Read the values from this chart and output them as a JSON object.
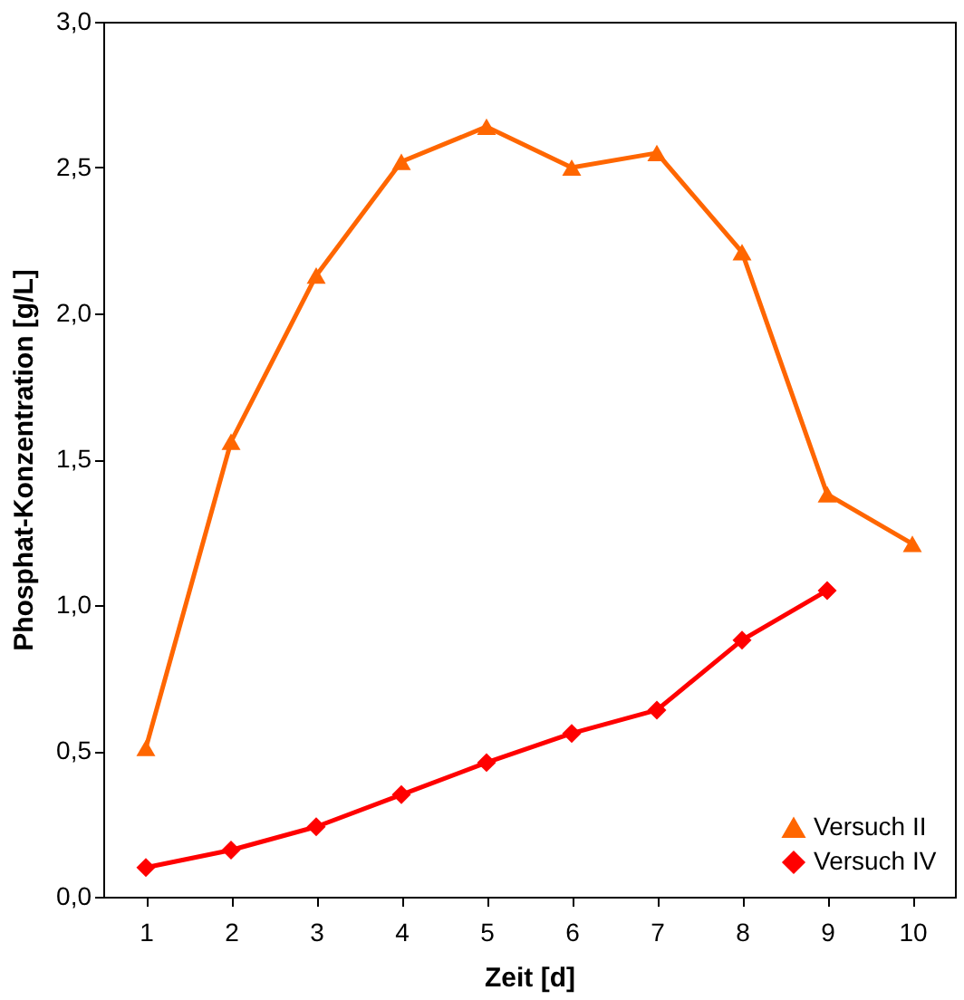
{
  "chart_data": {
    "type": "line",
    "xlabel": "Zeit [d]",
    "ylabel": "Phosphat-Konzentration [g/L]",
    "categories": [
      "1",
      "2",
      "3",
      "4",
      "5",
      "6",
      "7",
      "8",
      "9",
      "10"
    ],
    "series": [
      {
        "name": "Versuch II",
        "color": "#ff6600",
        "marker": "triangle",
        "values": [
          0.51,
          1.56,
          2.13,
          2.52,
          2.64,
          2.5,
          2.55,
          2.21,
          1.38,
          1.21
        ]
      },
      {
        "name": "Versuch IV",
        "color": "#ff0000",
        "marker": "diamond",
        "values": [
          0.1,
          0.16,
          0.24,
          0.35,
          0.46,
          0.56,
          0.64,
          0.88,
          1.05,
          null
        ]
      }
    ],
    "ylim": [
      0,
      3
    ],
    "yticks": [
      {
        "value": 0,
        "label": "0,0"
      },
      {
        "value": 0.5,
        "label": "0,5"
      },
      {
        "value": 1,
        "label": "1,0"
      },
      {
        "value": 1.5,
        "label": "1,5"
      },
      {
        "value": 2,
        "label": "2,0"
      },
      {
        "value": 2.5,
        "label": "2,5"
      },
      {
        "value": 3,
        "label": "3,0"
      }
    ],
    "grid": false,
    "legend": "bottom right",
    "line_style": "solid"
  }
}
